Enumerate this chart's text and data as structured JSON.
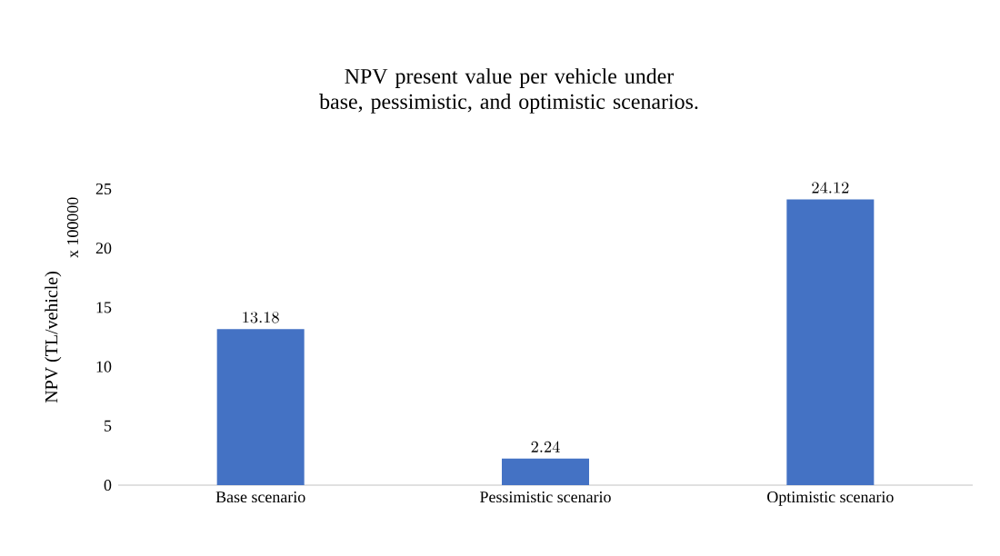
{
  "chart_data": {
    "type": "bar",
    "title": "NPV present value per vehicle under base, pessimistic, and optimistic scenarios.",
    "ylabel": "NPV (TL/vehicle)",
    "annotations": [
      "x 100000"
    ],
    "categories": [
      "Base scenario",
      "Pessimistic scenario",
      "Optimistic scenario"
    ],
    "values": [
      13.18,
      2.24,
      24.12
    ],
    "color": "#4472c4",
    "ylim": [
      0,
      25
    ],
    "yticks": [
      0,
      5,
      10,
      15,
      20,
      25
    ],
    "data_labels": true
  }
}
